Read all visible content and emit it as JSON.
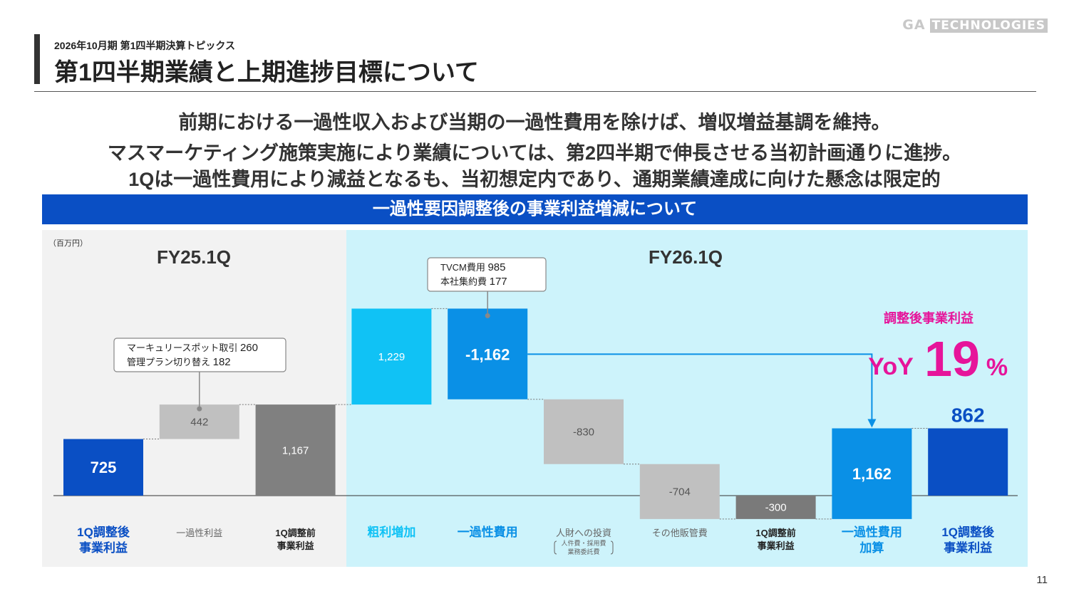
{
  "logo": {
    "ga": "GA",
    "tech": "TECHNOLOGIES"
  },
  "header": {
    "subtitle": "2026年10月期 第1四半期決算トピックス",
    "title": "第1四半期業績と上期進捗目標について"
  },
  "lead": [
    "前期における一過性収入および当期の一過性費用を除けば、増収増益基調を維持。",
    "マスマーケティング施策実施により業績については、第2四半期で伸長させる当初計画通りに進捗。",
    "1Qは一過性費用により減益となるも、当初想定内であり、通期業績達成に向けた懸念は限定的"
  ],
  "banner": "一過性要因調整後の事業利益増減について",
  "page_number": "11",
  "chart_data": {
    "type": "waterfall",
    "unit_label": "（百万円）",
    "period_labels": [
      "FY25.1Q",
      "FY26.1Q"
    ],
    "colors": {
      "blue_dark": "#0a4fc4",
      "blue_mid": "#0a90e6",
      "blue_light": "#10c2f5",
      "gray_dark": "#808080",
      "gray_mid": "#7a7a7a",
      "gray_light": "#c0c0c0",
      "panel_left": "#f2f2f2",
      "panel_right": "#cdf3fb",
      "magenta": "#e6149a"
    },
    "bars": [
      {
        "label": [
          "1Q調整後",
          "事業利益"
        ],
        "value": 725,
        "start": 0,
        "end": 725,
        "display": "725",
        "color": "#0a4fc4",
        "text_color": "#ffffff",
        "bold": true,
        "label_color": "#0a4fc4",
        "label_bold": true
      },
      {
        "label": [
          "一過性利益"
        ],
        "value": 442,
        "start": 725,
        "end": 1167,
        "display": "442",
        "color": "#c0c0c0",
        "text_color": "#555555",
        "bold": false,
        "label_color": "#666666",
        "label_bold": false
      },
      {
        "label": [
          "1Q調整前",
          "事業利益"
        ],
        "value": 1167,
        "start": 0,
        "end": 1167,
        "display": "1,167",
        "color": "#808080",
        "text_color": "#ffffff",
        "bold": false,
        "label_color": "#222222",
        "label_bold": true
      },
      {
        "label": [
          "粗利増加"
        ],
        "value": 1229,
        "start": 1167,
        "end": 2396,
        "display": "1,229",
        "color": "#10c2f5",
        "text_color": "#ffffff",
        "bold": false,
        "label_color": "#10c2f5",
        "label_bold": true
      },
      {
        "label": [
          "一過性費用"
        ],
        "value": -1162,
        "start": 2396,
        "end": 1234,
        "display": "-1,162",
        "color": "#0a90e6",
        "text_color": "#ffffff",
        "bold": true,
        "label_color": "#0a90e6",
        "label_bold": true
      },
      {
        "label": [
          "人財への投資"
        ],
        "sublabel": "人件費・採用費 業務委託費",
        "value": -830,
        "start": 1234,
        "end": 404,
        "display": "-830",
        "color": "#c0c0c0",
        "text_color": "#555555",
        "bold": false,
        "label_color": "#666666",
        "label_bold": false
      },
      {
        "label": [
          "その他販管費"
        ],
        "value": -704,
        "start": 404,
        "end": -300,
        "display": "-704",
        "color": "#c0c0c0",
        "text_color": "#555555",
        "bold": false,
        "label_color": "#666666",
        "label_bold": false
      },
      {
        "label": [
          "1Q調整前",
          "事業利益"
        ],
        "value": -300,
        "start": 0,
        "end": -300,
        "display": "-300",
        "color": "#7a7a7a",
        "text_color": "#ffffff",
        "bold": false,
        "label_color": "#222222",
        "label_bold": true
      },
      {
        "label": [
          "一過性費用",
          "加算"
        ],
        "value": 1162,
        "start": -300,
        "end": 862,
        "display": "1,162",
        "color": "#0a90e6",
        "text_color": "#ffffff",
        "bold": true,
        "label_color": "#0a90e6",
        "label_bold": true
      },
      {
        "label": [
          "1Q調整後",
          "事業利益"
        ],
        "value": 862,
        "start": 0,
        "end": 862,
        "display": "862",
        "color": "#0a4fc4",
        "text_color": "#0a4fc4",
        "bold": true,
        "label_color": "#0a4fc4",
        "label_bold": true
      }
    ],
    "callouts": [
      {
        "bar_index": 1,
        "lines": [
          [
            "マーキュリースポット取引 ",
            "260"
          ],
          [
            "管理プラン切り替え ",
            "182"
          ]
        ]
      },
      {
        "bar_index": 4,
        "lines": [
          [
            "TVCM費用 ",
            "985"
          ],
          [
            "本社集約費 ",
            "177"
          ]
        ]
      }
    ],
    "annotation": {
      "title": "調整後事業利益",
      "prefix": "YoY",
      "value": "19",
      "suffix": "%"
    }
  }
}
